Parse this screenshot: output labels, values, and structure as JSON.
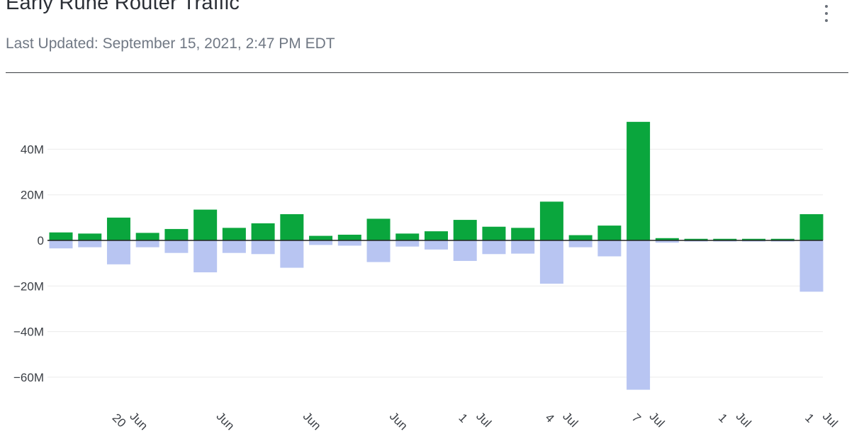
{
  "header": {
    "title": "Early Rune Router Traffic",
    "subtitle": "Last Updated: September 15, 2021, 2:47 PM EDT",
    "menu_icon": "more-vertical-icon"
  },
  "colors": {
    "inbound": "#0aa63d",
    "outbound": "#b8c5f2",
    "zero_line": "#222222",
    "grid": "#ececec"
  },
  "chart_data": {
    "type": "bar",
    "stacked": "diverging",
    "title": "",
    "xlabel": "",
    "ylabel": "",
    "ylim": [
      -70000000,
      60000000
    ],
    "yticks": [
      40000000,
      20000000,
      0,
      -20000000,
      -40000000,
      -60000000
    ],
    "ytick_labels": [
      "40M",
      "20M",
      "0",
      "−20M",
      "−40M",
      "−60M"
    ],
    "xtick_labels": [
      "Jun 20",
      "Jun",
      "Jun",
      "Jun",
      "Jul 1",
      "Jul 4",
      "Jul 7",
      "Jul 1",
      "Jul 1"
    ],
    "grid": true,
    "legend": "none",
    "series": [
      {
        "values": [
          3.5,
          3,
          10,
          3.3,
          5,
          13.5,
          5.5,
          7.5,
          11.5,
          2,
          2.5,
          9.5,
          3,
          4,
          9,
          6,
          5.5,
          17,
          2.3,
          6.5,
          52,
          1,
          0.7,
          0.7,
          0.7,
          0.7,
          11.5
        ]
      },
      {
        "values": [
          -3.5,
          -3,
          -10.5,
          -3,
          -5.5,
          -14,
          -5.5,
          -6,
          -12,
          -2,
          -2.3,
          -9.5,
          -2.7,
          -4,
          -9,
          -6,
          -5.8,
          -19,
          -3,
          -7,
          -65.5,
          -1,
          -0.5,
          -0.5,
          -0.5,
          -0.5,
          -22.5
        ]
      }
    ]
  }
}
